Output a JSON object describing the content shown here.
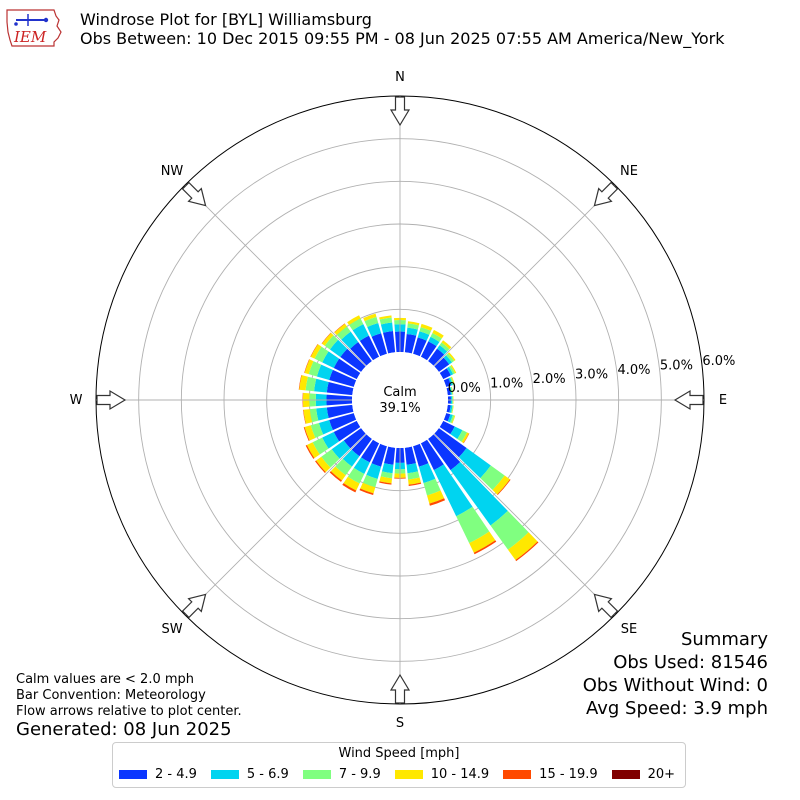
{
  "header": {
    "title": "Windrose Plot for [BYL] Williamsburg",
    "subtitle": "Obs Between: 10 Dec 2015 09:55 PM - 08 Jun 2025 07:55 AM America/New_York",
    "logo_text": "IEM"
  },
  "summary": {
    "heading": "Summary",
    "obs_used": "Obs Used: 81546",
    "obs_without_wind": "Obs Without Wind: 0",
    "avg_speed": "Avg Speed: 3.9 mph"
  },
  "notes": {
    "calm_note": "Calm values are < 2.0 mph",
    "bar_convention": "Bar Convention: Meteorology",
    "flow_arrows": "Flow arrows relative to plot center.",
    "generated": "Generated: 08 Jun 2025"
  },
  "chart_data": {
    "type": "windrose",
    "calm": {
      "label": "Calm",
      "value": "39.1%"
    },
    "compass_labels": [
      "N",
      "NE",
      "E",
      "SE",
      "S",
      "SW",
      "W",
      "NW"
    ],
    "radial_ticks": [
      "0.0%",
      "1.0%",
      "2.0%",
      "3.0%",
      "4.0%",
      "5.0%",
      "6.0%"
    ],
    "rmax_percent": 6.0,
    "grid": true,
    "legend": {
      "title": "Wind Speed [mph]",
      "placement": "bottom",
      "bins": [
        "2 - 4.9",
        "5 - 6.9",
        "7 - 9.9",
        "10 - 14.9",
        "15 - 19.9",
        "20+"
      ],
      "colors": [
        "#0b36ff",
        "#00d4f0",
        "#80ff80",
        "#ffe800",
        "#ff4a00",
        "#800000"
      ]
    },
    "directions_deg": [
      0,
      10,
      20,
      30,
      40,
      50,
      60,
      70,
      80,
      90,
      100,
      110,
      120,
      130,
      140,
      150,
      160,
      170,
      180,
      190,
      200,
      210,
      220,
      230,
      240,
      250,
      260,
      270,
      280,
      290,
      300,
      310,
      320,
      330,
      340,
      350
    ],
    "series": [
      {
        "name": "2 - 4.9",
        "values": [
          0.48,
          0.43,
          0.4,
          0.4,
          0.36,
          0.3,
          0.2,
          0.12,
          0.07,
          0.07,
          0.07,
          0.1,
          0.3,
          0.8,
          0.9,
          0.7,
          0.5,
          0.4,
          0.35,
          0.4,
          0.5,
          0.5,
          0.5,
          0.5,
          0.6,
          0.6,
          0.6,
          0.6,
          0.6,
          0.6,
          0.6,
          0.6,
          0.55,
          0.55,
          0.5,
          0.5
        ]
      },
      {
        "name": "5 - 6.9",
        "values": [
          0.17,
          0.15,
          0.15,
          0.12,
          0.1,
          0.08,
          0.06,
          0.04,
          0.03,
          0.03,
          0.04,
          0.06,
          0.2,
          0.7,
          1.6,
          1.2,
          0.4,
          0.2,
          0.15,
          0.2,
          0.3,
          0.3,
          0.3,
          0.35,
          0.3,
          0.25,
          0.25,
          0.25,
          0.3,
          0.3,
          0.3,
          0.3,
          0.3,
          0.3,
          0.25,
          0.2
        ]
      },
      {
        "name": "7 - 9.9",
        "values": [
          0.1,
          0.1,
          0.1,
          0.1,
          0.08,
          0.06,
          0.05,
          0.03,
          0.02,
          0.02,
          0.02,
          0.04,
          0.12,
          0.4,
          0.7,
          0.7,
          0.3,
          0.15,
          0.1,
          0.12,
          0.2,
          0.25,
          0.25,
          0.3,
          0.25,
          0.2,
          0.15,
          0.15,
          0.2,
          0.2,
          0.2,
          0.15,
          0.15,
          0.15,
          0.15,
          0.12
        ]
      },
      {
        "name": "10 - 14.9",
        "values": [
          0.05,
          0.05,
          0.08,
          0.08,
          0.06,
          0.04,
          0.03,
          0.02,
          0.01,
          0.01,
          0.01,
          0.02,
          0.05,
          0.15,
          0.3,
          0.25,
          0.2,
          0.12,
          0.1,
          0.12,
          0.15,
          0.18,
          0.15,
          0.15,
          0.15,
          0.15,
          0.15,
          0.15,
          0.15,
          0.1,
          0.1,
          0.08,
          0.08,
          0.08,
          0.08,
          0.05
        ]
      },
      {
        "name": "15 - 19.9",
        "values": [
          0.0,
          0.0,
          0.0,
          0.0,
          0.0,
          0.0,
          0.0,
          0.0,
          0.0,
          0.0,
          0.0,
          0.0,
          0.01,
          0.02,
          0.03,
          0.04,
          0.05,
          0.03,
          0.02,
          0.03,
          0.04,
          0.05,
          0.04,
          0.03,
          0.03,
          0.02,
          0.01,
          0.01,
          0.01,
          0.01,
          0.01,
          0.01,
          0.01,
          0.0,
          0.0,
          0.0
        ]
      },
      {
        "name": "20+",
        "values": [
          0.0,
          0.0,
          0.0,
          0.0,
          0.0,
          0.0,
          0.0,
          0.0,
          0.0,
          0.0,
          0.0,
          0.0,
          0.0,
          0.0,
          0.0,
          0.0,
          0.0,
          0.0,
          0.0,
          0.0,
          0.0,
          0.0,
          0.0,
          0.0,
          0.0,
          0.0,
          0.0,
          0.0,
          0.0,
          0.0,
          0.0,
          0.0,
          0.0,
          0.0,
          0.0,
          0.0
        ]
      }
    ]
  }
}
